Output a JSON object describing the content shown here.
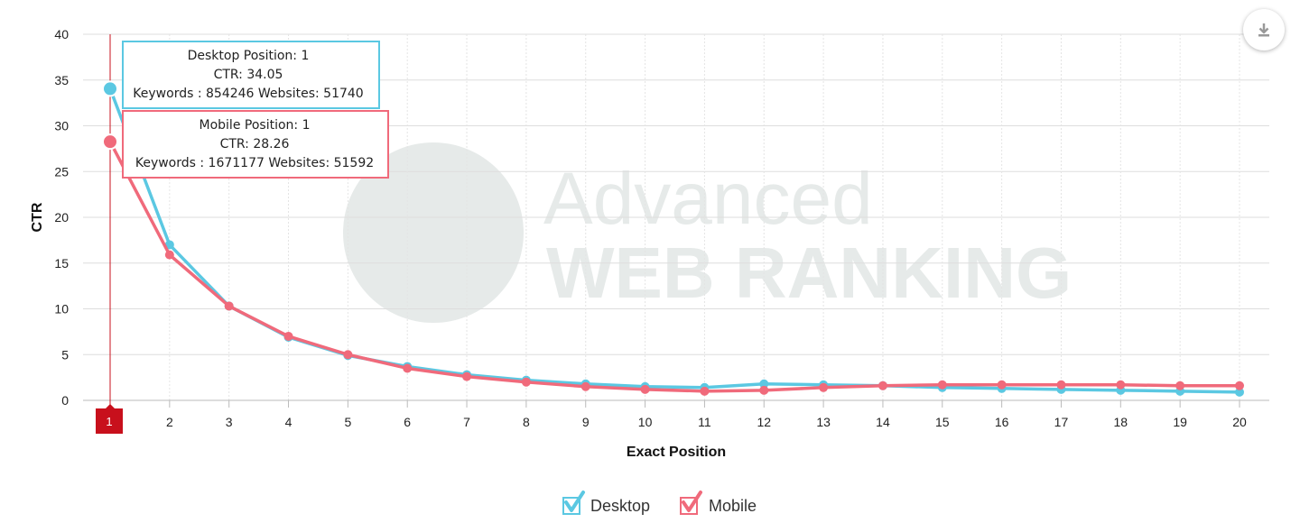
{
  "chart_data": {
    "type": "line",
    "title": "",
    "xlabel": "Exact Position",
    "ylabel": "CTR",
    "x": [
      1,
      2,
      3,
      4,
      5,
      6,
      7,
      8,
      9,
      10,
      11,
      12,
      13,
      14,
      15,
      16,
      17,
      18,
      19,
      20
    ],
    "xlim": [
      1,
      20
    ],
    "ylim": [
      0,
      40
    ],
    "yticks": [
      0,
      5,
      10,
      15,
      20,
      25,
      30,
      35,
      40
    ],
    "grid": true,
    "legend_position": "bottom-center",
    "highlighted_x": "1",
    "series": [
      {
        "name": "Desktop",
        "color": "#5bc8e2",
        "values": [
          34.05,
          17.0,
          10.3,
          6.9,
          4.9,
          3.7,
          2.8,
          2.2,
          1.8,
          1.5,
          1.4,
          1.8,
          1.7,
          1.6,
          1.4,
          1.3,
          1.2,
          1.1,
          1.0,
          0.9
        ]
      },
      {
        "name": "Mobile",
        "color": "#f06a7b",
        "values": [
          28.26,
          15.9,
          10.3,
          7.0,
          5.0,
          3.5,
          2.6,
          2.0,
          1.5,
          1.2,
          1.0,
          1.1,
          1.4,
          1.6,
          1.7,
          1.7,
          1.7,
          1.7,
          1.6,
          1.6
        ]
      }
    ],
    "tooltips": [
      {
        "series": "Desktop",
        "line1": "Desktop Position: 1",
        "line2": "CTR: 34.05",
        "line3": "Keywords : 854246 Websites: 51740"
      },
      {
        "series": "Mobile",
        "line1": "Mobile Position: 1",
        "line2": "CTR: 28.26",
        "line3": "Keywords : 1671177 Websites: 51592"
      }
    ]
  },
  "watermark": {
    "line1": "Advanced",
    "line2": "WEB RANKING"
  },
  "icons": {
    "download": "download-icon",
    "checkbox": "checkmark-icon"
  }
}
